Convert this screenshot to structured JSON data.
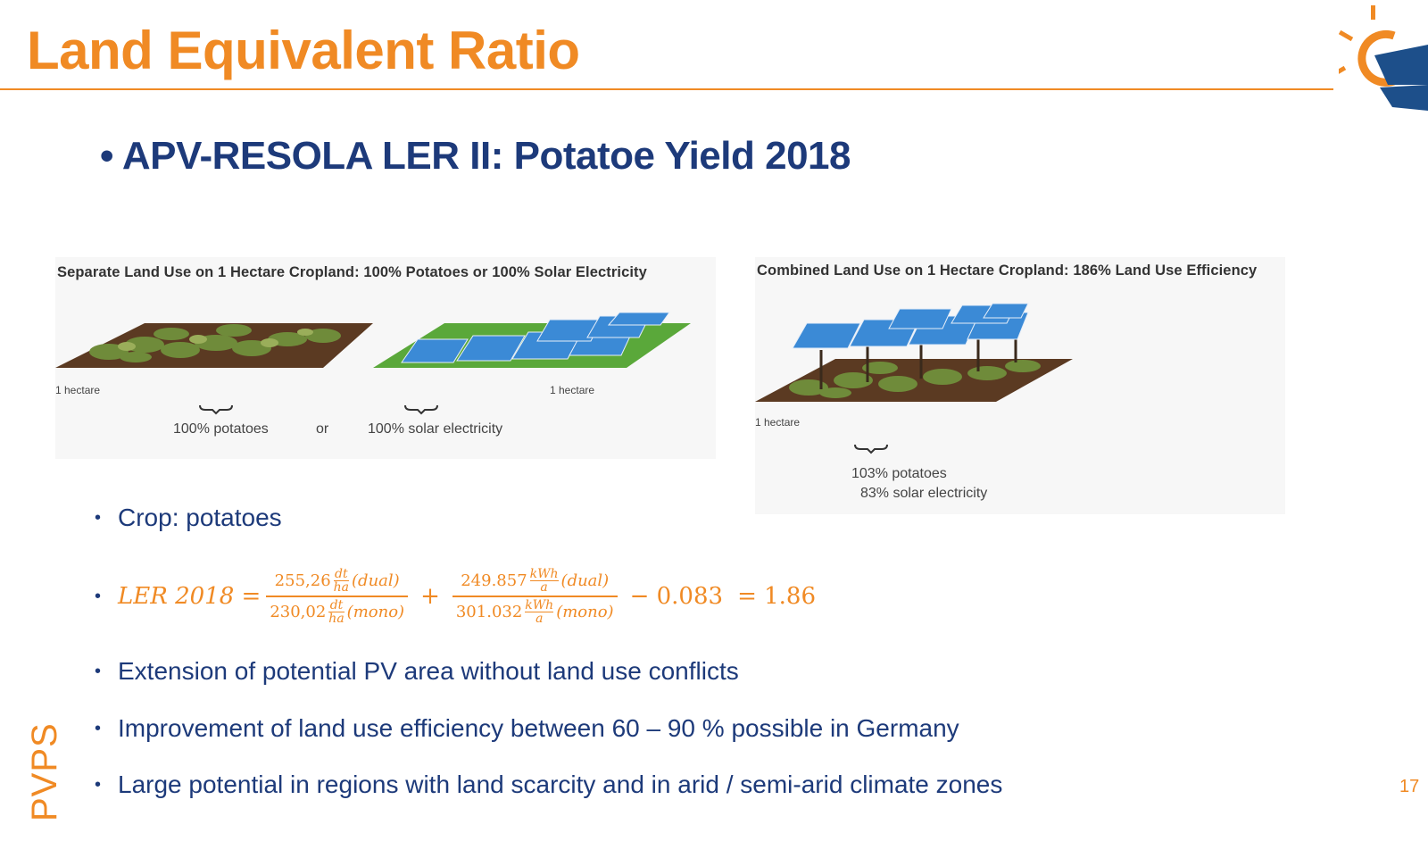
{
  "slide": {
    "title": "Land Equivalent Ratio",
    "subtitle": "APV-RESOLA LER II: Potatoe Yield 2018",
    "page_number": "17",
    "footer_brand": "PVPS"
  },
  "figure_left": {
    "caption": "Separate Land Use on 1 Hectare Cropland:  100% Potatoes or 100% Solar Electricity",
    "hectare_label_1": "1 hectare",
    "hectare_label_2": "1 hectare",
    "label_potatoes": "100% potatoes",
    "label_or": "or",
    "label_solar": "100% solar electricity"
  },
  "figure_right": {
    "caption": "Combined Land Use on 1 Hectare Cropland:  186% Land Use Efficiency",
    "hectare_label": "1 hectare",
    "label_potatoes": "103% potatoes",
    "label_solar": "83% solar electricity"
  },
  "bullets": {
    "crop": "Crop: potatoes",
    "extension": "Extension of potential PV area without land use conflicts",
    "improvement": "Improvement of land use efficiency between 60 – 90 % possible in Germany",
    "potential": "Large potential in regions with land scarcity and in arid / semi-arid climate zones"
  },
  "formula": {
    "lhs": "LER 2018 =",
    "t1_num_value": "255,26",
    "t1_den_value": "230,02",
    "t1_unit_num": "dt",
    "t1_unit_den": "ha",
    "t2_num_value": "249.857",
    "t2_den_value": "301.032",
    "t2_unit_num": "kWh",
    "t2_unit_den": "a",
    "dual": "(dual)",
    "mono": "(mono)",
    "plus": "+",
    "minus_term": "− 0.083",
    "result": "= 1.86"
  },
  "colors": {
    "orange": "#f08a24",
    "navy": "#1d3a7a",
    "solar_blue": "#3b8ad6",
    "grass_green": "#5aa83a",
    "soil_brown": "#5b3a22"
  }
}
